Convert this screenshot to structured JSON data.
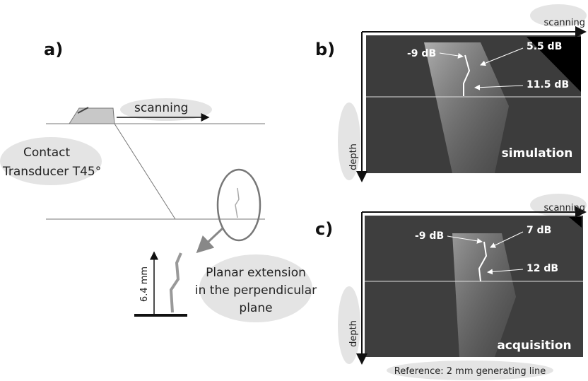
{
  "panel_a": {
    "label": "a)",
    "scanning": "scanning",
    "transducer": [
      "Contact",
      "Transducer T45°"
    ],
    "height": "6.4 mm",
    "extension": [
      "Planar extension",
      "in the perpendicular",
      "plane"
    ]
  },
  "panel_b": {
    "label": "b)",
    "scanning": "scanning",
    "depth": "depth",
    "annotations": [
      "-9 dB",
      "5.5 dB",
      "11.5 dB"
    ],
    "caption": "simulation"
  },
  "panel_c": {
    "label": "c)",
    "scanning": "scanning",
    "depth": "depth",
    "annotations": [
      "-9 dB",
      "7 dB",
      "12 dB"
    ],
    "caption": "acquisition",
    "reference": "Reference: 2 mm generating line"
  }
}
